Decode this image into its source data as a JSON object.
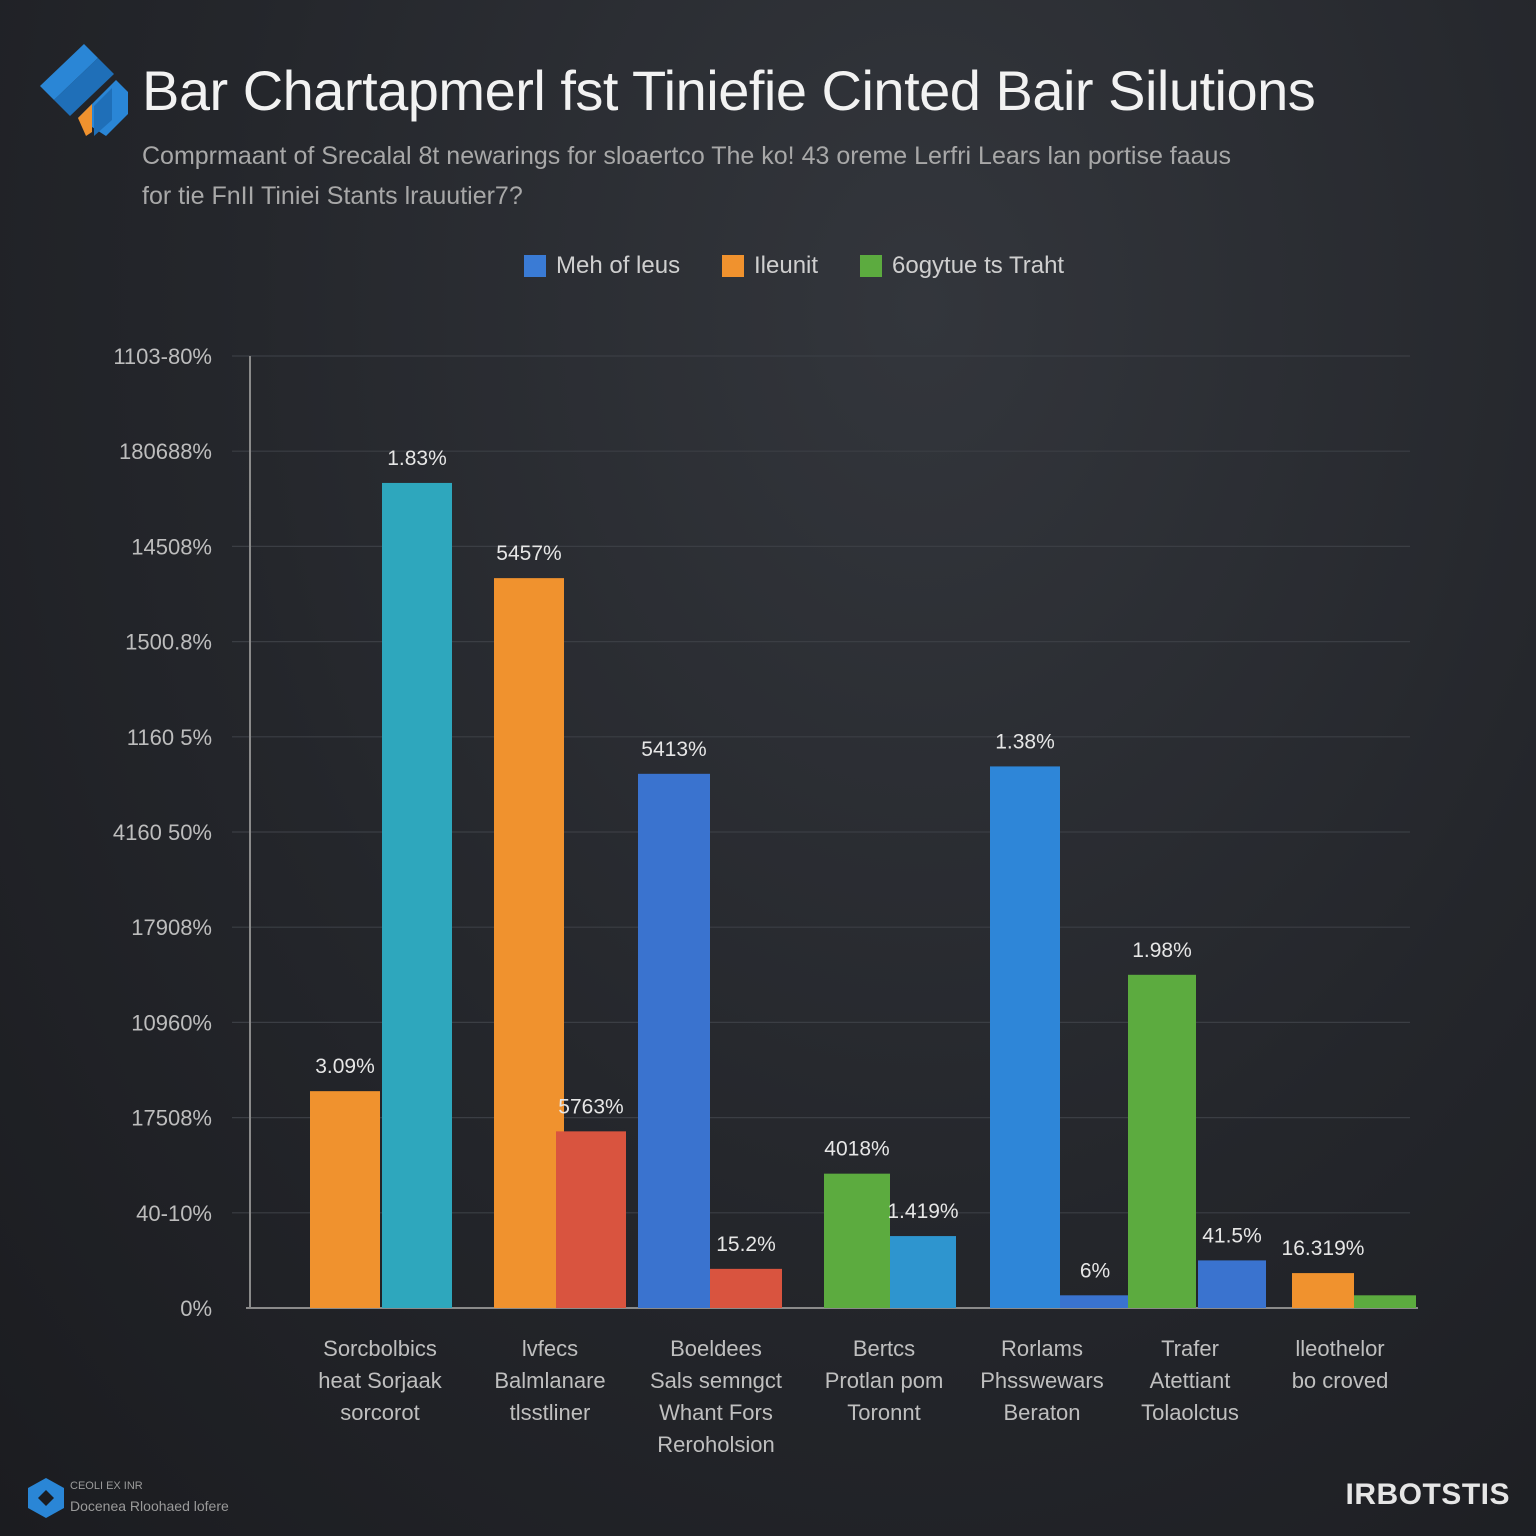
{
  "header": {
    "title": "Bar Chartapmerl fst Tiniefie Cinted Bair Silutions",
    "subtitle_line1": "Comprmaant of Srecalal 8t newarings for sloaertco The ko! 43 oreme Lerfri Lears lan portise faaus",
    "subtitle_line2": "for tie FnII Tiniei Stants lrauutier7?"
  },
  "legend": [
    {
      "label": "Meh of leus",
      "color": "#3a7bd5"
    },
    {
      "label": "Ileunit",
      "color": "#f0922e"
    },
    {
      "label": "6ogytue ts Traht",
      "color": "#5cab3f"
    }
  ],
  "chart_data": {
    "type": "bar",
    "title": "Bar Chartapmerl fst Tiniefie Cinted Bair Silutions",
    "ylabel": "",
    "ylim": [
      0,
      9
    ],
    "y_tick_labels": [
      "0%",
      "40-10%",
      "17508%",
      "10960%",
      "17908%",
      "4160 50%",
      "1160 5%",
      "1500.8%",
      "14508%",
      "180688%",
      "1103-80%"
    ],
    "categories": [
      [
        "Sorcbolbics",
        "heat Sorjaak",
        "sorcorot"
      ],
      [
        "lvfecs",
        "Balmlanare",
        "tlsstliner"
      ],
      [
        "Boeldees",
        "Sals semngct",
        "Whant Fors",
        "Reroholsion"
      ],
      [
        "Bertcs",
        "Protlan pom",
        "Toronnt"
      ],
      [
        "Rorlams",
        "Phsswewars",
        "Beraton"
      ],
      [
        "Trafer",
        "Atettiant",
        "Tolaolctus"
      ],
      [
        "lleothelor",
        "bo croved"
      ]
    ],
    "bars": [
      {
        "group": 0,
        "value": 2.05,
        "color": "#f0922e",
        "label": "3.09%"
      },
      {
        "group": 0,
        "value": 7.8,
        "color": "#2ea7bd",
        "label": "1.83%"
      },
      {
        "group": 1,
        "value": 6.9,
        "color": "#f0922e",
        "label": "5457%"
      },
      {
        "group": 1,
        "value": 1.67,
        "color": "#d9543f",
        "label": "5763%"
      },
      {
        "group": 2,
        "value": 5.05,
        "color": "#3a73cf",
        "label": "5413%"
      },
      {
        "group": 2,
        "value": 0.37,
        "color": "#d9543f",
        "label": "15.2%"
      },
      {
        "group": 3,
        "value": 1.27,
        "color": "#5cab3f",
        "label": "4018%"
      },
      {
        "group": 3,
        "value": 0.68,
        "color": "#2e95cf",
        "label": "1.419%"
      },
      {
        "group": 4,
        "value": 5.12,
        "color": "#2e86d8",
        "label": "1.38%"
      },
      {
        "group": 4,
        "value": 0.12,
        "color": "#3a73cf",
        "label": "6%"
      },
      {
        "group": 5,
        "value": 3.15,
        "color": "#5cab3f",
        "label": "1.98%"
      },
      {
        "group": 5,
        "value": 0.45,
        "color": "#3a73cf",
        "label": "41.5%"
      },
      {
        "group": 6,
        "value": 0.33,
        "color": "#f0922e",
        "label": "16.319%"
      },
      {
        "group": 6,
        "value": 0.12,
        "color": "#5cab3f",
        "label": ""
      }
    ],
    "grid": true,
    "legend_position": "top-center"
  },
  "footer": {
    "brand_line1": "CEOLI EX INR",
    "brand_line2": "Docenea Rloohaed lofere",
    "right_brand": "IRBOTSTIS"
  }
}
